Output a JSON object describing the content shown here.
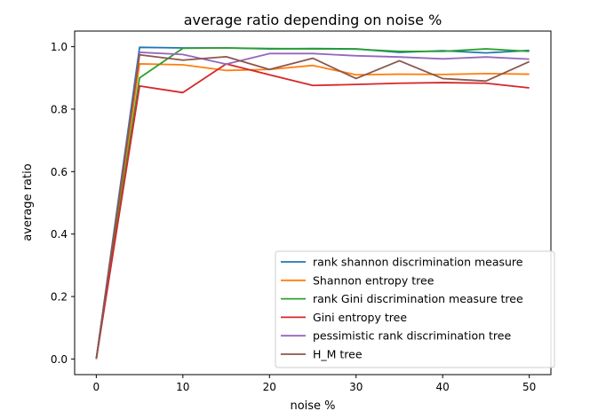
{
  "chart_data": {
    "type": "line",
    "title": "average ratio depending on noise %",
    "xlabel": "noise %",
    "ylabel": "average ratio",
    "xlim": [
      -2.5,
      52.5
    ],
    "ylim": [
      -0.05,
      1.05
    ],
    "xticks": [
      0,
      10,
      20,
      30,
      40,
      50
    ],
    "yticks": [
      0.0,
      0.2,
      0.4,
      0.6,
      0.8,
      1.0
    ],
    "xtick_labels": [
      "0",
      "10",
      "20",
      "30",
      "40",
      "50"
    ],
    "ytick_labels": [
      "0.0",
      "0.2",
      "0.4",
      "0.6",
      "0.8",
      "1.0"
    ],
    "grid": false,
    "legend_position": "bottom-right",
    "x": [
      0,
      5,
      10,
      15,
      20,
      25,
      30,
      35,
      40,
      45,
      50
    ],
    "series": [
      {
        "name": "rank shannon discrimination measure",
        "color": "#1f77b4",
        "values": [
          0.0,
          0.998,
          0.996,
          0.996,
          0.993,
          0.994,
          0.993,
          0.982,
          0.987,
          0.98,
          0.988
        ]
      },
      {
        "name": "Shannon entropy tree",
        "color": "#ff7f0e",
        "values": [
          0.0,
          0.945,
          0.942,
          0.924,
          0.927,
          0.94,
          0.91,
          0.912,
          0.911,
          0.914,
          0.912
        ]
      },
      {
        "name": "rank Gini discrimination measure tree",
        "color": "#2ca02c",
        "values": [
          0.0,
          0.9,
          0.995,
          0.996,
          0.994,
          0.993,
          0.992,
          0.985,
          0.985,
          0.993,
          0.985
        ]
      },
      {
        "name": "Gini entropy tree",
        "color": "#d62728",
        "values": [
          0.0,
          0.874,
          0.853,
          0.945,
          0.91,
          0.876,
          0.879,
          0.883,
          0.885,
          0.883,
          0.868
        ]
      },
      {
        "name": "pessimistic rank discrimination tree",
        "color": "#9467bd",
        "values": [
          0.0,
          0.982,
          0.975,
          0.944,
          0.978,
          0.978,
          0.971,
          0.967,
          0.961,
          0.967,
          0.96
        ]
      },
      {
        "name": "H_M tree",
        "color": "#8c564b",
        "values": [
          0.0,
          0.974,
          0.957,
          0.968,
          0.927,
          0.963,
          0.898,
          0.955,
          0.898,
          0.89,
          0.952
        ]
      }
    ]
  }
}
